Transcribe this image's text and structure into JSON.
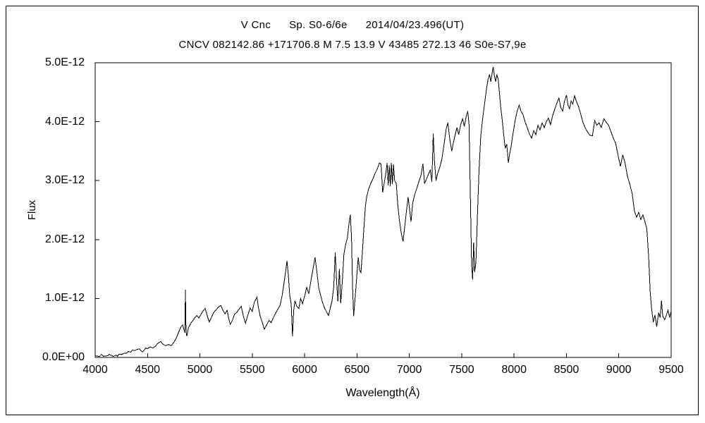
{
  "figure": {
    "background": "#ffffff",
    "frame_color": "#000000"
  },
  "header": {
    "object": "V Cnc",
    "spectral_type": "Sp. S0-6/6e",
    "date_ut": "2014/04/23.496(UT)",
    "catalog_line": "CNCV 082142.86 +171706.8 M 7.5 13.9 V 43485 272.13 46 S0e-S7,9e"
  },
  "chart_data": {
    "type": "line",
    "title": "V Cnc    Sp. S0-6/6e    2014/04/23.496(UT)",
    "subtitle": "CNCV 082142.86 +171706.8 M 7.5 13.9 V 43485 272.13 46 S0e-S7,9e",
    "xlabel": "Wavelength(Å)",
    "ylabel": "Flux",
    "xlim": [
      4000,
      9500
    ],
    "ylim_e12": [
      0,
      5
    ],
    "y_unit_scale": "1E-12",
    "grid": false,
    "legend": false,
    "line_color": "#000000",
    "x_ticks": [
      4000,
      4500,
      5000,
      5500,
      6000,
      6500,
      7000,
      7500,
      8000,
      8500,
      9000,
      9500
    ],
    "y_ticks": [
      {
        "value_e12": 0,
        "label": "0.0E+00"
      },
      {
        "value_e12": 1,
        "label": "1.0E-12"
      },
      {
        "value_e12": 2,
        "label": "2.0E-12"
      },
      {
        "value_e12": 3,
        "label": "3.0E-12"
      },
      {
        "value_e12": 4,
        "label": "4.0E-12"
      },
      {
        "value_e12": 5,
        "label": "5.0E-12"
      }
    ],
    "noise": {
      "seed": 20140423,
      "base_e12": 0.025,
      "proportional": 0.05
    },
    "series": [
      {
        "name": "V Cnc spectrum",
        "x_unit": "Angstrom",
        "flux_in_units_of_1e-12": true,
        "points": [
          [
            4000,
            0.03
          ],
          [
            4030,
            0.02
          ],
          [
            4060,
            0.05
          ],
          [
            4080,
            0.02
          ],
          [
            4120,
            0.03
          ],
          [
            4160,
            0.03
          ],
          [
            4200,
            0.04
          ],
          [
            4250,
            0.05
          ],
          [
            4300,
            0.07
          ],
          [
            4340,
            0.09
          ],
          [
            4380,
            0.12
          ],
          [
            4410,
            0.14
          ],
          [
            4440,
            0.11
          ],
          [
            4470,
            0.13
          ],
          [
            4500,
            0.15
          ],
          [
            4525,
            0.18
          ],
          [
            4550,
            0.16
          ],
          [
            4575,
            0.19
          ],
          [
            4600,
            0.24
          ],
          [
            4625,
            0.27
          ],
          [
            4650,
            0.22
          ],
          [
            4675,
            0.2
          ],
          [
            4700,
            0.22
          ],
          [
            4725,
            0.2
          ],
          [
            4750,
            0.25
          ],
          [
            4775,
            0.33
          ],
          [
            4800,
            0.44
          ],
          [
            4820,
            0.52
          ],
          [
            4835,
            0.55
          ],
          [
            4848,
            0.47
          ],
          [
            4856,
            0.42
          ],
          [
            4862,
            1.15
          ],
          [
            4868,
            0.44
          ],
          [
            4875,
            0.36
          ],
          [
            4890,
            0.5
          ],
          [
            4910,
            0.57
          ],
          [
            4930,
            0.62
          ],
          [
            4950,
            0.67
          ],
          [
            4970,
            0.71
          ],
          [
            4990,
            0.67
          ],
          [
            5010,
            0.73
          ],
          [
            5030,
            0.79
          ],
          [
            5050,
            0.83
          ],
          [
            5070,
            0.71
          ],
          [
            5090,
            0.6
          ],
          [
            5110,
            0.68
          ],
          [
            5130,
            0.76
          ],
          [
            5155,
            0.81
          ],
          [
            5180,
            0.86
          ],
          [
            5200,
            0.88
          ],
          [
            5220,
            0.8
          ],
          [
            5240,
            0.74
          ],
          [
            5260,
            0.8
          ],
          [
            5275,
            0.66
          ],
          [
            5290,
            0.56
          ],
          [
            5310,
            0.63
          ],
          [
            5330,
            0.73
          ],
          [
            5355,
            0.77
          ],
          [
            5375,
            0.82
          ],
          [
            5395,
            0.87
          ],
          [
            5415,
            0.7
          ],
          [
            5435,
            0.58
          ],
          [
            5460,
            0.73
          ],
          [
            5480,
            0.84
          ],
          [
            5500,
            0.78
          ],
          [
            5520,
            0.94
          ],
          [
            5545,
            1.02
          ],
          [
            5560,
            0.84
          ],
          [
            5575,
            0.7
          ],
          [
            5595,
            0.6
          ],
          [
            5615,
            0.48
          ],
          [
            5640,
            0.56
          ],
          [
            5660,
            0.63
          ],
          [
            5680,
            0.59
          ],
          [
            5700,
            0.67
          ],
          [
            5720,
            0.74
          ],
          [
            5745,
            0.82
          ],
          [
            5765,
            0.88
          ],
          [
            5785,
            1.05
          ],
          [
            5805,
            1.28
          ],
          [
            5820,
            1.48
          ],
          [
            5832,
            1.64
          ],
          [
            5845,
            1.38
          ],
          [
            5858,
            1.05
          ],
          [
            5872,
            0.9
          ],
          [
            5884,
            0.36
          ],
          [
            5896,
            0.8
          ],
          [
            5908,
            0.96
          ],
          [
            5925,
            0.87
          ],
          [
            5945,
            0.83
          ],
          [
            5962,
            1.0
          ],
          [
            5980,
            0.91
          ],
          [
            6000,
            1.04
          ],
          [
            6020,
            1.19
          ],
          [
            6040,
            1.08
          ],
          [
            6062,
            1.32
          ],
          [
            6082,
            1.52
          ],
          [
            6100,
            1.7
          ],
          [
            6118,
            1.44
          ],
          [
            6135,
            1.18
          ],
          [
            6152,
            1.06
          ],
          [
            6170,
            0.94
          ],
          [
            6190,
            0.84
          ],
          [
            6210,
            0.77
          ],
          [
            6228,
            0.71
          ],
          [
            6245,
            0.84
          ],
          [
            6262,
            0.96
          ],
          [
            6278,
            1.2
          ],
          [
            6292,
            1.78
          ],
          [
            6305,
            1.3
          ],
          [
            6318,
            0.95
          ],
          [
            6332,
            1.5
          ],
          [
            6345,
            0.92
          ],
          [
            6360,
            1.3
          ],
          [
            6375,
            1.75
          ],
          [
            6392,
            1.92
          ],
          [
            6408,
            2.02
          ],
          [
            6422,
            2.25
          ],
          [
            6436,
            2.42
          ],
          [
            6448,
            2.05
          ],
          [
            6458,
            1.2
          ],
          [
            6468,
            0.7
          ],
          [
            6480,
            0.96
          ],
          [
            6495,
            1.3
          ],
          [
            6512,
            1.7
          ],
          [
            6526,
            1.48
          ],
          [
            6538,
            1.44
          ],
          [
            6552,
            1.8
          ],
          [
            6566,
            2.2
          ],
          [
            6580,
            2.55
          ],
          [
            6592,
            2.72
          ],
          [
            6610,
            2.85
          ],
          [
            6630,
            2.95
          ],
          [
            6650,
            3.02
          ],
          [
            6672,
            3.12
          ],
          [
            6694,
            3.2
          ],
          [
            6715,
            3.3
          ],
          [
            6730,
            3.28
          ],
          [
            6745,
            2.8
          ],
          [
            6760,
            2.96
          ],
          [
            6775,
            3.12
          ],
          [
            6788,
            3.3
          ],
          [
            6798,
            2.92
          ],
          [
            6808,
            3.26
          ],
          [
            6818,
            2.9
          ],
          [
            6828,
            3.3
          ],
          [
            6838,
            2.94
          ],
          [
            6848,
            3.28
          ],
          [
            6860,
            3.0
          ],
          [
            6875,
            2.95
          ],
          [
            6890,
            2.58
          ],
          [
            6905,
            2.33
          ],
          [
            6922,
            2.12
          ],
          [
            6940,
            1.97
          ],
          [
            6956,
            2.22
          ],
          [
            6972,
            2.48
          ],
          [
            6988,
            2.72
          ],
          [
            7002,
            2.52
          ],
          [
            7016,
            2.3
          ],
          [
            7032,
            2.62
          ],
          [
            7050,
            2.76
          ],
          [
            7070,
            2.86
          ],
          [
            7090,
            2.98
          ],
          [
            7110,
            3.08
          ],
          [
            7130,
            3.29
          ],
          [
            7145,
            2.95
          ],
          [
            7162,
            3.02
          ],
          [
            7180,
            3.1
          ],
          [
            7200,
            3.18
          ],
          [
            7215,
            2.98
          ],
          [
            7228,
            3.8
          ],
          [
            7240,
            3.32
          ],
          [
            7255,
            3.0
          ],
          [
            7270,
            3.12
          ],
          [
            7290,
            3.22
          ],
          [
            7310,
            3.36
          ],
          [
            7330,
            3.6
          ],
          [
            7352,
            3.88
          ],
          [
            7368,
            3.98
          ],
          [
            7385,
            3.72
          ],
          [
            7405,
            3.5
          ],
          [
            7420,
            3.64
          ],
          [
            7438,
            3.78
          ],
          [
            7455,
            3.9
          ],
          [
            7472,
            3.78
          ],
          [
            7490,
            3.95
          ],
          [
            7508,
            4.05
          ],
          [
            7525,
            3.92
          ],
          [
            7542,
            4.08
          ],
          [
            7558,
            4.18
          ],
          [
            7570,
            3.95
          ],
          [
            7582,
            2.8
          ],
          [
            7594,
            1.6
          ],
          [
            7604,
            1.32
          ],
          [
            7614,
            1.95
          ],
          [
            7624,
            1.45
          ],
          [
            7636,
            1.62
          ],
          [
            7650,
            2.4
          ],
          [
            7665,
            3.15
          ],
          [
            7682,
            3.75
          ],
          [
            7700,
            4.05
          ],
          [
            7718,
            4.3
          ],
          [
            7736,
            4.55
          ],
          [
            7752,
            4.72
          ],
          [
            7766,
            4.8
          ],
          [
            7778,
            4.68
          ],
          [
            7790,
            4.82
          ],
          [
            7800,
            4.93
          ],
          [
            7812,
            4.78
          ],
          [
            7824,
            4.68
          ],
          [
            7836,
            4.8
          ],
          [
            7848,
            4.72
          ],
          [
            7860,
            4.5
          ],
          [
            7872,
            4.25
          ],
          [
            7886,
            4.05
          ],
          [
            7900,
            3.8
          ],
          [
            7915,
            3.55
          ],
          [
            7930,
            3.62
          ],
          [
            7945,
            3.3
          ],
          [
            7958,
            3.45
          ],
          [
            7972,
            3.58
          ],
          [
            7990,
            3.8
          ],
          [
            8010,
            4.02
          ],
          [
            8030,
            4.18
          ],
          [
            8048,
            4.28
          ],
          [
            8066,
            4.18
          ],
          [
            8085,
            4.12
          ],
          [
            8105,
            4.0
          ],
          [
            8125,
            3.9
          ],
          [
            8145,
            3.8
          ],
          [
            8168,
            3.72
          ],
          [
            8188,
            3.85
          ],
          [
            8208,
            3.78
          ],
          [
            8228,
            3.94
          ],
          [
            8248,
            3.86
          ],
          [
            8268,
            3.98
          ],
          [
            8288,
            3.9
          ],
          [
            8308,
            4.0
          ],
          [
            8328,
            4.06
          ],
          [
            8348,
            3.95
          ],
          [
            8368,
            4.1
          ],
          [
            8390,
            4.22
          ],
          [
            8410,
            4.32
          ],
          [
            8428,
            4.4
          ],
          [
            8446,
            4.24
          ],
          [
            8464,
            4.18
          ],
          [
            8482,
            4.35
          ],
          [
            8500,
            4.45
          ],
          [
            8515,
            4.28
          ],
          [
            8530,
            4.22
          ],
          [
            8545,
            4.35
          ],
          [
            8560,
            4.3
          ],
          [
            8578,
            4.44
          ],
          [
            8596,
            4.34
          ],
          [
            8615,
            4.26
          ],
          [
            8635,
            4.14
          ],
          [
            8655,
            4.0
          ],
          [
            8678,
            3.9
          ],
          [
            8700,
            3.83
          ],
          [
            8724,
            3.77
          ],
          [
            8748,
            3.76
          ],
          [
            8770,
            4.02
          ],
          [
            8790,
            3.94
          ],
          [
            8812,
            3.98
          ],
          [
            8832,
            3.9
          ],
          [
            8858,
            4.05
          ],
          [
            8880,
            3.99
          ],
          [
            8902,
            3.94
          ],
          [
            8925,
            3.83
          ],
          [
            8948,
            3.72
          ],
          [
            8970,
            3.63
          ],
          [
            8992,
            3.44
          ],
          [
            9015,
            3.24
          ],
          [
            9038,
            3.44
          ],
          [
            9060,
            3.3
          ],
          [
            9082,
            3.08
          ],
          [
            9105,
            2.94
          ],
          [
            9128,
            2.78
          ],
          [
            9150,
            2.48
          ],
          [
            9170,
            2.38
          ],
          [
            9190,
            2.46
          ],
          [
            9210,
            2.34
          ],
          [
            9230,
            2.42
          ],
          [
            9250,
            2.3
          ],
          [
            9268,
            2.18
          ],
          [
            9285,
            1.7
          ],
          [
            9300,
            1.1
          ],
          [
            9315,
            0.8
          ],
          [
            9330,
            0.6
          ],
          [
            9345,
            0.72
          ],
          [
            9362,
            0.52
          ],
          [
            9380,
            0.76
          ],
          [
            9395,
            0.68
          ],
          [
            9408,
            0.96
          ],
          [
            9420,
            0.7
          ],
          [
            9438,
            0.64
          ],
          [
            9455,
            0.72
          ],
          [
            9470,
            0.8
          ],
          [
            9485,
            0.68
          ],
          [
            9500,
            0.78
          ]
        ]
      }
    ]
  }
}
